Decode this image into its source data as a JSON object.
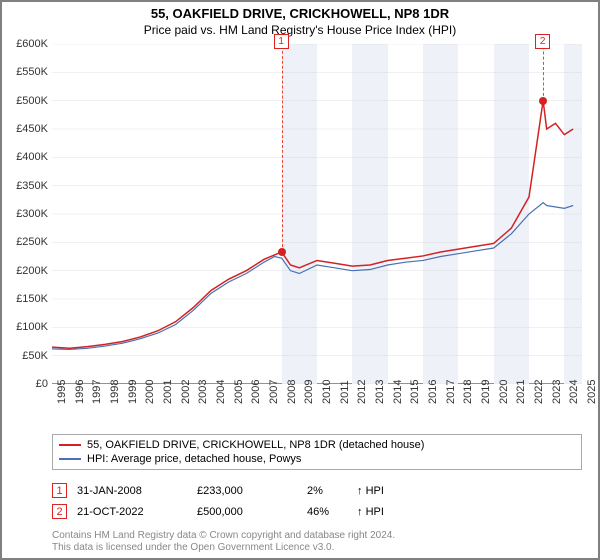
{
  "title": "55, OAKFIELD DRIVE, CRICKHOWELL, NP8 1DR",
  "subtitle": "Price paid vs. HM Land Registry's House Price Index (HPI)",
  "chart": {
    "type": "line",
    "ylim": [
      0,
      600000
    ],
    "ytick_step": 50000,
    "ylabels": [
      "£0",
      "£50K",
      "£100K",
      "£150K",
      "£200K",
      "£250K",
      "£300K",
      "£350K",
      "£400K",
      "£450K",
      "£500K",
      "£550K",
      "£600K"
    ],
    "xlim": [
      1995,
      2025
    ],
    "xtick_step": 1,
    "xlabels": [
      "1995",
      "1996",
      "1997",
      "1998",
      "1999",
      "2000",
      "2001",
      "2002",
      "2003",
      "2004",
      "2005",
      "2006",
      "2007",
      "2008",
      "2009",
      "2010",
      "2011",
      "2012",
      "2013",
      "2014",
      "2015",
      "2016",
      "2017",
      "2018",
      "2019",
      "2020",
      "2021",
      "2022",
      "2023",
      "2024",
      "2025"
    ],
    "hbands_start": 2008,
    "hbands_width": 2,
    "hband_color": "#eef2f8",
    "background_color": "#ffffff",
    "series": [
      {
        "name": "hpi",
        "color": "#4a6fb5",
        "width": 1.2,
        "points": [
          [
            1995,
            62000
          ],
          [
            1996,
            61000
          ],
          [
            1997,
            63000
          ],
          [
            1998,
            67000
          ],
          [
            1999,
            72000
          ],
          [
            2000,
            80000
          ],
          [
            2001,
            90000
          ],
          [
            2002,
            105000
          ],
          [
            2003,
            130000
          ],
          [
            2004,
            160000
          ],
          [
            2005,
            180000
          ],
          [
            2006,
            195000
          ],
          [
            2007,
            215000
          ],
          [
            2007.6,
            225000
          ],
          [
            2008,
            222000
          ],
          [
            2008.5,
            200000
          ],
          [
            2009,
            195000
          ],
          [
            2010,
            210000
          ],
          [
            2011,
            205000
          ],
          [
            2012,
            200000
          ],
          [
            2013,
            202000
          ],
          [
            2014,
            210000
          ],
          [
            2015,
            215000
          ],
          [
            2016,
            218000
          ],
          [
            2017,
            225000
          ],
          [
            2018,
            230000
          ],
          [
            2019,
            235000
          ],
          [
            2020,
            240000
          ],
          [
            2021,
            265000
          ],
          [
            2022,
            300000
          ],
          [
            2022.8,
            320000
          ],
          [
            2023,
            315000
          ],
          [
            2024,
            310000
          ],
          [
            2024.5,
            315000
          ]
        ]
      },
      {
        "name": "property",
        "color": "#d22222",
        "width": 1.5,
        "points": [
          [
            1995,
            65000
          ],
          [
            1996,
            63000
          ],
          [
            1997,
            66000
          ],
          [
            1998,
            70000
          ],
          [
            1999,
            75000
          ],
          [
            2000,
            83000
          ],
          [
            2001,
            94000
          ],
          [
            2002,
            110000
          ],
          [
            2003,
            135000
          ],
          [
            2004,
            165000
          ],
          [
            2005,
            185000
          ],
          [
            2006,
            200000
          ],
          [
            2007,
            220000
          ],
          [
            2008,
            233000
          ],
          [
            2008.5,
            210000
          ],
          [
            2009,
            205000
          ],
          [
            2010,
            218000
          ],
          [
            2011,
            213000
          ],
          [
            2012,
            208000
          ],
          [
            2013,
            210000
          ],
          [
            2014,
            218000
          ],
          [
            2015,
            222000
          ],
          [
            2016,
            226000
          ],
          [
            2017,
            233000
          ],
          [
            2018,
            238000
          ],
          [
            2019,
            243000
          ],
          [
            2020,
            248000
          ],
          [
            2021,
            275000
          ],
          [
            2022,
            330000
          ],
          [
            2022.8,
            500000
          ],
          [
            2023,
            450000
          ],
          [
            2023.5,
            460000
          ],
          [
            2024,
            440000
          ],
          [
            2024.5,
            450000
          ]
        ]
      }
    ],
    "markers": [
      {
        "x": 2008,
        "y": 233000,
        "label": "1"
      },
      {
        "x": 2022.8,
        "y": 500000,
        "label": "2"
      }
    ],
    "marker_color": "#d22222"
  },
  "legend": {
    "items": [
      {
        "color": "#d22222",
        "label": "55, OAKFIELD DRIVE, CRICKHOWELL, NP8 1DR (detached house)"
      },
      {
        "color": "#4a6fb5",
        "label": "HPI: Average price, detached house, Powys"
      }
    ]
  },
  "sales": [
    {
      "n": "1",
      "date": "31-JAN-2008",
      "price": "£233,000",
      "pct": "2%",
      "dir": "↑",
      "kind": "HPI"
    },
    {
      "n": "2",
      "date": "21-OCT-2022",
      "price": "£500,000",
      "pct": "46%",
      "dir": "↑",
      "kind": "HPI"
    }
  ],
  "footer_line1": "Contains HM Land Registry data © Crown copyright and database right 2024.",
  "footer_line2": "This data is licensed under the Open Government Licence v3.0."
}
